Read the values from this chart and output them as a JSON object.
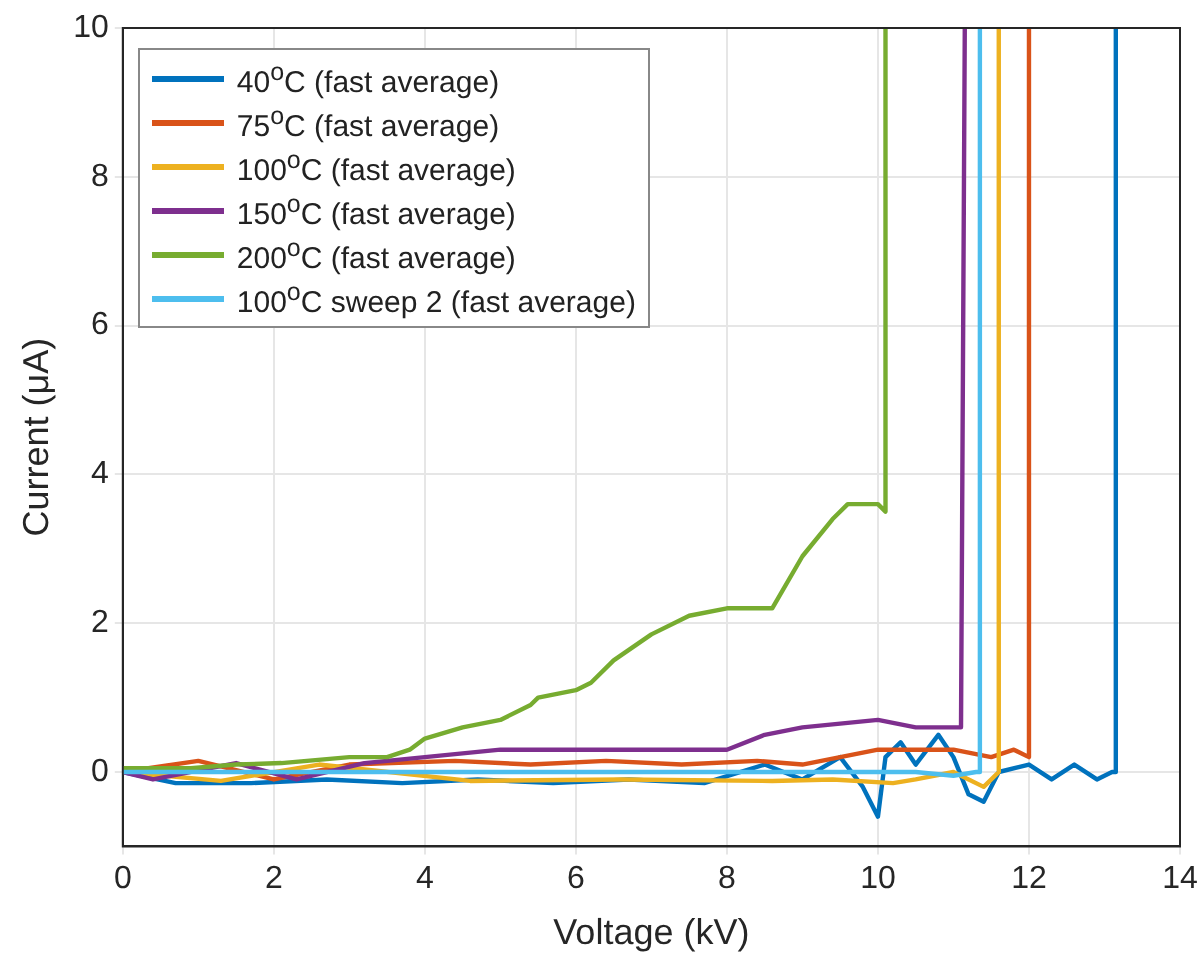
{
  "chart_data": {
    "type": "line",
    "xlabel": "Voltage (kV)",
    "ylabel": "Current (μA)",
    "xlim": [
      0,
      14
    ],
    "ylim": [
      -1,
      10
    ],
    "xticks": [
      0,
      2,
      4,
      6,
      8,
      10,
      12,
      14
    ],
    "yticks": [
      0,
      2,
      4,
      6,
      8,
      10
    ],
    "grid": true,
    "legend": "top left",
    "marker": "none",
    "line_style": "solid",
    "series": [
      {
        "name": "40$^{o}$C (fast average)",
        "color": "#0072bd",
        "x": [
          0,
          0.7,
          1.7,
          2.7,
          3.7,
          4.7,
          5.7,
          6.7,
          7.7,
          8.5,
          9,
          9.5,
          9.8,
          10,
          10.1,
          10.3,
          10.5,
          10.8,
          11,
          11.2,
          11.4,
          11.6,
          12,
          12.3,
          12.6,
          12.9,
          13.1,
          13.15,
          13.15
        ],
        "values": [
          0,
          -0.15,
          -0.15,
          -0.1,
          -0.15,
          -0.1,
          -0.15,
          -0.1,
          -0.15,
          0.1,
          -0.1,
          0.2,
          -0.2,
          -0.6,
          0.2,
          0.4,
          0.1,
          0.5,
          0.2,
          -0.3,
          -0.4,
          0,
          0.1,
          -0.1,
          0.1,
          -0.1,
          0,
          0,
          10
        ]
      },
      {
        "name": "75$^{o}$C (fast average)",
        "color": "#d95319",
        "x": [
          0,
          1.0,
          2.0,
          3.0,
          4.4,
          5.4,
          6.4,
          7.4,
          8.4,
          9,
          9.5,
          10,
          10.5,
          11,
          11.5,
          11.8,
          12,
          12
        ],
        "values": [
          0,
          0.15,
          -0.1,
          0.1,
          0.15,
          0.1,
          0.15,
          0.1,
          0.15,
          0.1,
          0.2,
          0.3,
          0.3,
          0.3,
          0.2,
          0.3,
          0.2,
          10
        ]
      },
      {
        "name": "100$^{o}$C (fast average)",
        "color": "#edb120",
        "x": [
          0,
          1.3,
          2.6,
          4.6,
          6.6,
          8.6,
          9.4,
          10.2,
          10.5,
          11,
          11.4,
          11.6,
          11.6
        ],
        "values": [
          0,
          -0.12,
          0.1,
          -0.12,
          -0.1,
          -0.12,
          -0.1,
          -0.15,
          -0.1,
          0,
          -0.2,
          0,
          10
        ]
      },
      {
        "name": "150$^{o}$C (fast average)",
        "color": "#7e2f8e",
        "x": [
          0,
          0.4,
          1.5,
          2.3,
          3.2,
          4,
          5,
          6,
          7,
          8,
          8.5,
          9,
          9.5,
          10,
          10.5,
          11,
          11.1,
          11.15
        ],
        "values": [
          0,
          -0.1,
          0.12,
          -0.1,
          0.12,
          0.2,
          0.3,
          0.3,
          0.3,
          0.3,
          0.5,
          0.6,
          0.65,
          0.7,
          0.6,
          0.6,
          0.6,
          10
        ]
      },
      {
        "name": "200$^{o}$C (fast average)",
        "color": "#77ac30",
        "x": [
          0,
          0.9,
          1.5,
          2.1,
          3,
          3.5,
          3.8,
          4,
          4.5,
          5,
          5.4,
          5.5,
          6,
          6.2,
          6.5,
          7,
          7.5,
          8,
          8.6,
          9,
          9.4,
          9.6,
          10,
          10.1,
          10.1
        ],
        "values": [
          0.05,
          0.05,
          0.1,
          0.12,
          0.2,
          0.2,
          0.3,
          0.45,
          0.6,
          0.7,
          0.9,
          1.0,
          1.1,
          1.2,
          1.5,
          1.85,
          2.1,
          2.2,
          2.2,
          2.9,
          3.4,
          3.6,
          3.6,
          3.5,
          10
        ]
      },
      {
        "name": "100$^{o}$C sweep 2 (fast average)",
        "color": "#4dbeee",
        "x": [
          0,
          2,
          4,
          6,
          8,
          9,
          10,
          10.5,
          11,
          11.3,
          11.35,
          11.35
        ],
        "values": [
          0,
          0,
          0,
          0,
          0,
          0,
          0,
          0,
          -0.05,
          0,
          0,
          10
        ]
      }
    ]
  }
}
